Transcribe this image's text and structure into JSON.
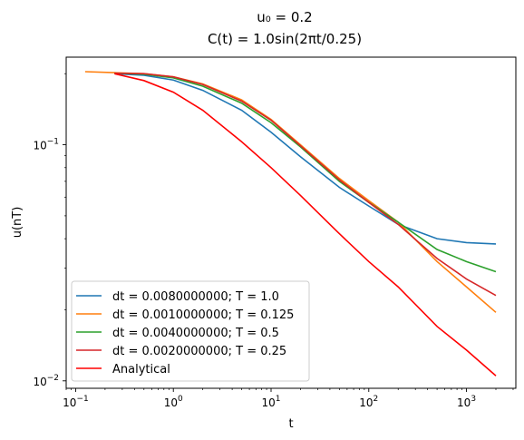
{
  "chart_data": {
    "type": "line",
    "title_line1": "u₀ = 0.2",
    "title_line2": "C(t) = 1.0sin(2πt/0.25)",
    "xlabel": "t",
    "ylabel": "u(nT)",
    "xscale": "log",
    "yscale": "log",
    "xlim": [
      0.08,
      3200
    ],
    "ylim": [
      0.0093,
      0.235
    ],
    "x_ticks": [
      {
        "value": 0.1,
        "base": "10",
        "exp": "−1"
      },
      {
        "value": 1,
        "base": "10",
        "exp": "0"
      },
      {
        "value": 10,
        "base": "10",
        "exp": "1"
      },
      {
        "value": 100,
        "base": "10",
        "exp": "2"
      },
      {
        "value": 1000,
        "base": "10",
        "exp": "3"
      }
    ],
    "y_ticks": [
      {
        "value": 0.01,
        "base": "10",
        "exp": "−2"
      },
      {
        "value": 0.1,
        "base": "10",
        "exp": "−1"
      }
    ],
    "legend_position": "lower left",
    "grid": false,
    "series": [
      {
        "name": "dt = 0.0080000000; T = 1.0",
        "color": "#1f77b4",
        "x": [
          0.25,
          0.5,
          1,
          2,
          5,
          10,
          20,
          50,
          100,
          200,
          500,
          1000,
          2000
        ],
        "y": [
          0.2,
          0.197,
          0.188,
          0.17,
          0.14,
          0.113,
          0.089,
          0.066,
          0.055,
          0.046,
          0.04,
          0.0385,
          0.038
        ]
      },
      {
        "name": "dt = 0.0010000000; T = 0.125",
        "color": "#ff7f0e",
        "x": [
          0.125,
          0.25,
          0.5,
          1,
          2,
          5,
          10,
          20,
          50,
          100,
          200,
          500,
          1000,
          2000
        ],
        "y": [
          0.204,
          0.202,
          0.2,
          0.194,
          0.181,
          0.155,
          0.128,
          0.1,
          0.072,
          0.058,
          0.047,
          0.032,
          0.025,
          0.0195
        ]
      },
      {
        "name": "dt = 0.0040000000; T = 0.5",
        "color": "#2ca02c",
        "x": [
          0.25,
          0.5,
          1,
          2,
          5,
          10,
          20,
          50,
          100,
          200,
          500,
          1000,
          2000
        ],
        "y": [
          0.201,
          0.199,
          0.192,
          0.177,
          0.15,
          0.124,
          0.098,
          0.07,
          0.057,
          0.047,
          0.036,
          0.032,
          0.029
        ]
      },
      {
        "name": "dt = 0.0020000000; T = 0.25",
        "color": "#d62728",
        "x": [
          0.25,
          0.5,
          1,
          2,
          5,
          10,
          20,
          50,
          100,
          200,
          500,
          1000,
          2000
        ],
        "y": [
          0.201,
          0.2,
          0.194,
          0.18,
          0.153,
          0.127,
          0.099,
          0.071,
          0.057,
          0.046,
          0.033,
          0.027,
          0.023
        ]
      },
      {
        "name": "Analytical",
        "color": "#ff0000",
        "x": [
          0.25,
          0.5,
          1,
          2,
          5,
          10,
          20,
          50,
          100,
          200,
          500,
          1000,
          2000
        ],
        "y": [
          0.2,
          0.187,
          0.167,
          0.14,
          0.103,
          0.08,
          0.061,
          0.042,
          0.032,
          0.025,
          0.017,
          0.0135,
          0.0105
        ]
      }
    ]
  }
}
